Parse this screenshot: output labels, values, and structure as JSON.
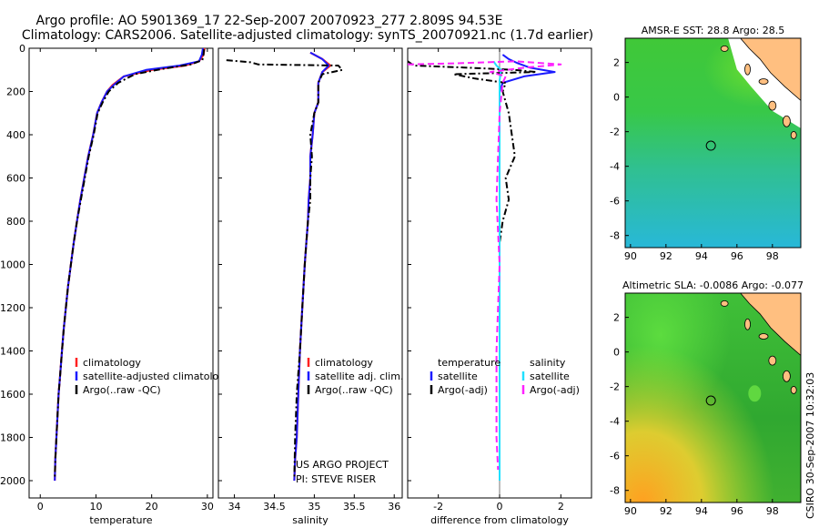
{
  "title_line1": "Argo profile: AO 5901369_17 22-Sep-2007 20070923_277 2.809S 94.53E",
  "title_line2": "Climatology: CARS2006. Satellite-adjusted climatology: synTS_20070921.nc (1.7d earlier)",
  "credit": "CSIRO 30-Sep-2007 10:32:03",
  "project_line1": "US ARGO PROJECT",
  "project_line2": "PI: STEVE RISER",
  "colors": {
    "climatology": "#ff2020",
    "satellite": "#1a1aff",
    "argo": "#000000",
    "salinity_satellite": "#20e0ff",
    "salinity_argo": "#ff22ff",
    "land": "#ffbf80"
  },
  "chart_data": [
    {
      "type": "line",
      "id": "temperature",
      "xlabel": "temperature",
      "ylabel": "",
      "xlim": [
        -2,
        31
      ],
      "ylim": [
        2080,
        0
      ],
      "xticks": [
        0,
        10,
        20,
        30
      ],
      "yticks": [
        0,
        200,
        400,
        600,
        800,
        1000,
        1200,
        1400,
        1600,
        1800,
        2000
      ],
      "legend": [
        "climatology",
        "satellite-adjusted climatology",
        "Argo(..raw -QC)"
      ],
      "series": [
        {
          "name": "climatology",
          "x": [
            29.5,
            29.3,
            28.5,
            26,
            20,
            15,
            13,
            12,
            11,
            10.2,
            9.5,
            8.6,
            7.9,
            7.2,
            6.6,
            6.0,
            5.5,
            5.0,
            4.6,
            4.2,
            3.9,
            3.6,
            3.3,
            3.1,
            2.9,
            2.7,
            2.6
          ],
          "y": [
            0,
            30,
            60,
            80,
            100,
            130,
            170,
            200,
            250,
            300,
            400,
            500,
            600,
            700,
            800,
            900,
            1000,
            1100,
            1200,
            1300,
            1400,
            1500,
            1600,
            1700,
            1800,
            1900,
            2000
          ]
        },
        {
          "name": "satellite-adjusted climatology",
          "x": [
            29.2,
            29.0,
            28.5,
            25,
            19,
            15,
            13.2,
            12,
            11,
            10.2,
            9.5,
            8.6,
            7.9,
            7.2,
            6.6,
            6.0,
            5.5,
            5.0,
            4.6,
            4.2,
            3.9,
            3.6,
            3.3,
            3.1,
            2.9,
            2.7,
            2.6
          ],
          "y": [
            0,
            30,
            60,
            80,
            100,
            130,
            170,
            200,
            250,
            300,
            400,
            500,
            600,
            700,
            800,
            900,
            1000,
            1100,
            1200,
            1300,
            1400,
            1500,
            1600,
            1700,
            1800,
            1900,
            2000
          ]
        },
        {
          "name": "Argo(..raw -QC)",
          "x": [
            29.4,
            29.3,
            29.1,
            27,
            22,
            17,
            14,
            12.3,
            11.2,
            10.3,
            9.6,
            8.7,
            8.0,
            7.3,
            6.6,
            6.0,
            5.5,
            5.0,
            4.6,
            4.2,
            3.9,
            3.6,
            3.3,
            3.1,
            2.9,
            2.7,
            2.6
          ],
          "y": [
            5,
            30,
            55,
            75,
            95,
            120,
            160,
            200,
            250,
            300,
            400,
            500,
            600,
            700,
            800,
            900,
            1000,
            1100,
            1200,
            1300,
            1400,
            1500,
            1600,
            1700,
            1800,
            1900,
            1990
          ]
        }
      ]
    },
    {
      "type": "line",
      "id": "salinity",
      "xlabel": "salinity",
      "ylabel": "",
      "xlim": [
        33.8,
        36.1
      ],
      "ylim": [
        2080,
        0
      ],
      "xticks": [
        34,
        34.5,
        35,
        35.5,
        36
      ],
      "xtick_labels": [
        "34",
        "34.5",
        "35",
        "35.5",
        "36"
      ],
      "legend": [
        "climatology",
        "satellite adj. clim.",
        "Argo(..raw -QC)"
      ],
      "series": [
        {
          "name": "climatology",
          "x": [
            34.95,
            35.1,
            35.2,
            35.1,
            35.05,
            35.05,
            35.0,
            34.98,
            34.95,
            34.95,
            34.93,
            34.92,
            34.9,
            34.88,
            34.85,
            34.82,
            34.8,
            34.78,
            34.76,
            34.75
          ],
          "y": [
            20,
            50,
            80,
            110,
            160,
            250,
            300,
            400,
            500,
            600,
            700,
            800,
            900,
            1000,
            1200,
            1400,
            1600,
            1800,
            1900,
            2000
          ]
        },
        {
          "name": "satellite adj. clim.",
          "x": [
            34.95,
            35.1,
            35.18,
            35.1,
            35.05,
            35.05,
            35.0,
            34.98,
            34.95,
            34.95,
            34.93,
            34.92,
            34.9,
            34.88,
            34.85,
            34.82,
            34.8,
            34.78,
            34.76,
            34.75
          ],
          "y": [
            20,
            50,
            80,
            110,
            160,
            250,
            300,
            400,
            500,
            600,
            700,
            800,
            900,
            1000,
            1200,
            1400,
            1600,
            1800,
            1900,
            2000
          ]
        },
        {
          "name": "Argo(..raw -QC)",
          "x": [
            33.9,
            34.2,
            34.3,
            35.3,
            35.35,
            35.1,
            35.05,
            35.05,
            35.0,
            34.95,
            34.97,
            34.95,
            34.95,
            34.92,
            34.9,
            34.88,
            34.85,
            34.82,
            34.78,
            34.76,
            34.75
          ],
          "y": [
            55,
            65,
            75,
            80,
            100,
            120,
            160,
            250,
            300,
            400,
            500,
            600,
            700,
            800,
            900,
            1000,
            1200,
            1400,
            1600,
            1800,
            1990
          ]
        }
      ]
    },
    {
      "type": "line",
      "id": "difference",
      "xlabel": "difference from climatology",
      "ylabel": "",
      "xlim": [
        -3,
        3
      ],
      "ylim": [
        2080,
        0
      ],
      "xticks": [
        -2,
        0,
        2
      ],
      "legend_headers": [
        "temperature",
        "salinity"
      ],
      "legend": [
        "satellite",
        "Argo(-adj)",
        "satellite",
        "Argo(-adj)"
      ],
      "series": [
        {
          "name": "temperature satellite",
          "x": [
            0.1,
            0.3,
            0.6,
            1.0,
            1.8,
            0.8,
            0.1,
            0,
            0,
            0,
            0,
            0
          ],
          "y": [
            30,
            50,
            70,
            90,
            110,
            130,
            160,
            200,
            500,
            1000,
            1500,
            2000
          ]
        },
        {
          "name": "temperature Argo(-adj)",
          "x": [
            -3.0,
            -2.8,
            -1.0,
            0.5,
            1.2,
            -1.5,
            -0.8,
            0.2,
            0.1,
            0.3,
            0.5,
            0.2,
            0.3,
            0.1,
            0,
            0,
            0,
            0
          ],
          "y": [
            60,
            80,
            90,
            100,
            110,
            120,
            140,
            160,
            200,
            300,
            500,
            600,
            700,
            800,
            900,
            1200,
            1600,
            2000
          ]
        },
        {
          "name": "salinity satellite",
          "x": [
            -0.2,
            -0.1,
            0.05,
            0,
            0,
            0,
            0,
            0
          ],
          "y": [
            60,
            80,
            100,
            150,
            300,
            800,
            1400,
            2000
          ]
        },
        {
          "name": "salinity Argo(-adj)",
          "x": [
            -3.0,
            -1.5,
            0.5,
            2.0,
            0.8,
            -0.3,
            0.2,
            0.1,
            0,
            -0.1,
            0,
            -0.1,
            -0.1,
            -0.05
          ],
          "y": [
            75,
            70,
            60,
            75,
            90,
            110,
            130,
            160,
            300,
            700,
            1000,
            1400,
            1800,
            1950
          ]
        }
      ]
    },
    {
      "type": "heatmap",
      "id": "sst_map",
      "title": "AMSR-E SST: 28.8 Argo: 28.5",
      "xlim": [
        89.7,
        99.6
      ],
      "ylim": [
        -8.7,
        3.4
      ],
      "xticks": [
        90,
        92,
        94,
        96,
        98
      ],
      "yticks": [
        2,
        0,
        -2,
        -4,
        -6,
        -8
      ],
      "marker": {
        "lon": 94.53,
        "lat": -2.809
      }
    },
    {
      "type": "heatmap",
      "id": "sla_map",
      "title": "Altimetric SLA: -0.0086 Argo: -0.077",
      "xlim": [
        89.7,
        99.6
      ],
      "ylim": [
        -8.7,
        3.4
      ],
      "xticks": [
        90,
        92,
        94,
        96,
        98
      ],
      "yticks": [
        2,
        0,
        -2,
        -4,
        -6,
        -8
      ],
      "marker": {
        "lon": 94.53,
        "lat": -2.809
      }
    }
  ]
}
